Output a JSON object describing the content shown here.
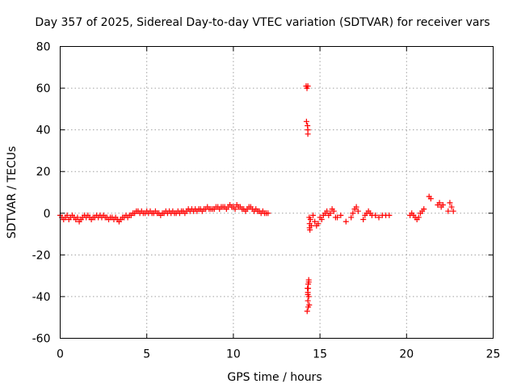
{
  "chart_data": {
    "type": "scatter",
    "title": "Day 357 of 2025, Sidereal Day-to-day VTEC variation (SDTVAR) for receiver vars",
    "xlabel": "GPS time / hours",
    "ylabel": "SDTVAR / TECUs",
    "xlim": [
      0,
      25
    ],
    "ylim": [
      -60,
      80
    ],
    "xticks": [
      0,
      5,
      10,
      15,
      20,
      25
    ],
    "yticks": [
      -60,
      -40,
      -20,
      0,
      20,
      40,
      60,
      80
    ],
    "grid": true,
    "marker": "+",
    "color": "#ff0000",
    "series": [
      {
        "name": "SDTVAR",
        "x": [
          0.0,
          0.1,
          0.2,
          0.3,
          0.4,
          0.5,
          0.6,
          0.7,
          0.8,
          0.9,
          1.0,
          1.1,
          1.2,
          1.3,
          1.4,
          1.5,
          1.6,
          1.7,
          1.8,
          1.9,
          2.0,
          2.1,
          2.2,
          2.3,
          2.4,
          2.5,
          2.6,
          2.7,
          2.8,
          2.9,
          3.0,
          3.1,
          3.2,
          3.3,
          3.4,
          3.5,
          3.6,
          3.7,
          3.8,
          3.9,
          4.0,
          4.1,
          4.2,
          4.3,
          4.4,
          4.5,
          4.6,
          4.7,
          4.8,
          4.9,
          5.0,
          5.1,
          5.2,
          5.3,
          5.4,
          5.5,
          5.6,
          5.7,
          5.8,
          5.9,
          6.0,
          6.1,
          6.2,
          6.3,
          6.4,
          6.5,
          6.6,
          6.7,
          6.8,
          6.9,
          7.0,
          7.1,
          7.2,
          7.3,
          7.4,
          7.5,
          7.6,
          7.7,
          7.8,
          7.9,
          8.0,
          8.1,
          8.2,
          8.3,
          8.4,
          8.5,
          8.6,
          8.7,
          8.8,
          8.9,
          9.0,
          9.1,
          9.2,
          9.3,
          9.4,
          9.5,
          9.6,
          9.7,
          9.8,
          9.9,
          10.0,
          10.1,
          10.2,
          10.3,
          10.4,
          10.5,
          10.6,
          10.7,
          10.8,
          10.9,
          11.0,
          11.1,
          11.2,
          11.3,
          11.4,
          11.5,
          11.6,
          11.7,
          11.8,
          11.9,
          12.0,
          14.2,
          14.25,
          14.3,
          14.22,
          14.28,
          14.3,
          14.3,
          14.26,
          14.32,
          14.3,
          14.35,
          14.3,
          14.28,
          14.32,
          14.35,
          14.38,
          14.3,
          14.32,
          14.35,
          14.38,
          14.4,
          14.4,
          14.42,
          14.45,
          14.5,
          14.6,
          14.7,
          14.8,
          14.9,
          15.0,
          15.1,
          15.2,
          15.3,
          15.4,
          15.5,
          15.6,
          15.7,
          15.8,
          15.9,
          16.0,
          16.2,
          16.5,
          16.8,
          16.9,
          17.0,
          17.1,
          17.2,
          17.5,
          17.6,
          17.7,
          17.8,
          17.9,
          18.0,
          18.2,
          18.4,
          18.6,
          18.8,
          19.0,
          20.2,
          20.3,
          20.4,
          20.5,
          20.6,
          20.7,
          20.8,
          20.9,
          21.0,
          21.3,
          21.4,
          21.8,
          21.9,
          22.0,
          22.1,
          22.4,
          22.5,
          22.6,
          22.7
        ],
        "y": [
          -1,
          -2,
          -3,
          -2,
          -1,
          -3,
          -2,
          -1,
          -2,
          -3,
          -2,
          -4,
          -3,
          -2,
          -1,
          -2,
          -1,
          -2,
          -3,
          -2,
          -2,
          -1,
          -2,
          -1,
          -2,
          -1,
          -2,
          -2,
          -3,
          -2,
          -2,
          -3,
          -2,
          -3,
          -4,
          -3,
          -2,
          -2,
          -1,
          -2,
          -1,
          -1,
          0,
          0,
          1,
          1,
          0,
          1,
          0,
          0,
          1,
          0,
          1,
          0,
          0,
          1,
          0,
          0,
          -1,
          0,
          0,
          1,
          0,
          1,
          0,
          1,
          0,
          0,
          1,
          0,
          1,
          1,
          0,
          1,
          2,
          1,
          2,
          1,
          2,
          1,
          2,
          2,
          1,
          2,
          2,
          3,
          2,
          2,
          2,
          2,
          3,
          3,
          2,
          3,
          3,
          3,
          2,
          3,
          4,
          3,
          3,
          2,
          4,
          3,
          3,
          2,
          2,
          1,
          2,
          3,
          3,
          2,
          1,
          2,
          1,
          1,
          0,
          1,
          0,
          0,
          0,
          61,
          60,
          61,
          44,
          42,
          40,
          38,
          -47,
          -45,
          -42,
          -40,
          -38,
          -36,
          -34,
          -32,
          -44,
          -39,
          -36,
          -33,
          -2,
          -7,
          -5,
          -8,
          -3,
          -6,
          -1,
          -4,
          -6,
          -5,
          -2,
          -3,
          -1,
          0,
          1,
          -1,
          0,
          2,
          1,
          -2,
          -2,
          -1,
          -4,
          -2,
          0,
          2,
          3,
          1,
          -3,
          -1,
          0,
          1,
          0,
          -1,
          -1,
          -2,
          -1,
          -1,
          -1,
          -1,
          0,
          -1,
          -2,
          -3,
          -2,
          0,
          1,
          2,
          8,
          7,
          4,
          5,
          3,
          4,
          1,
          5,
          3,
          1
        ]
      }
    ]
  }
}
